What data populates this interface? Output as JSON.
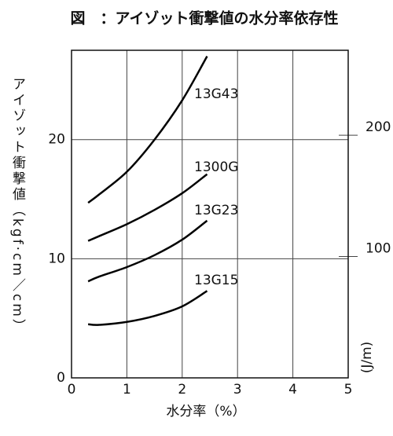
{
  "chart_data": {
    "type": "line",
    "title": "図　：アイゾット衝撃値の水分率依存性",
    "y_label": "アイゾット衝撃値（kgf·cm／cm）",
    "y2_label": "(J/m)",
    "x_label": "水分率（%）",
    "x": [
      0.3,
      0.5,
      1.0,
      1.5,
      2.0,
      2.45
    ],
    "series": [
      {
        "name": "13G43",
        "color": "#000000",
        "values": [
          14.7,
          15.4,
          17.3,
          20.0,
          23.3,
          27.0
        ]
      },
      {
        "name": "1300G",
        "color": "#000000",
        "values": [
          11.5,
          11.9,
          12.9,
          14.1,
          15.5,
          17.1
        ]
      },
      {
        "name": "13G23",
        "color": "#000000",
        "values": [
          8.1,
          8.5,
          9.3,
          10.3,
          11.6,
          13.2
        ]
      },
      {
        "name": "13G15",
        "color": "#000000",
        "values": [
          4.5,
          4.45,
          4.7,
          5.2,
          6.0,
          7.3
        ]
      }
    ],
    "xlim": [
      0,
      5
    ],
    "xticks": [
      0,
      1,
      2,
      3,
      4,
      5
    ],
    "ylim": [
      0,
      27.5
    ],
    "yticks": [
      0,
      10,
      20
    ],
    "y2lim": [
      0,
      270
    ],
    "y2ticks": [
      100,
      200
    ],
    "grid": true
  }
}
